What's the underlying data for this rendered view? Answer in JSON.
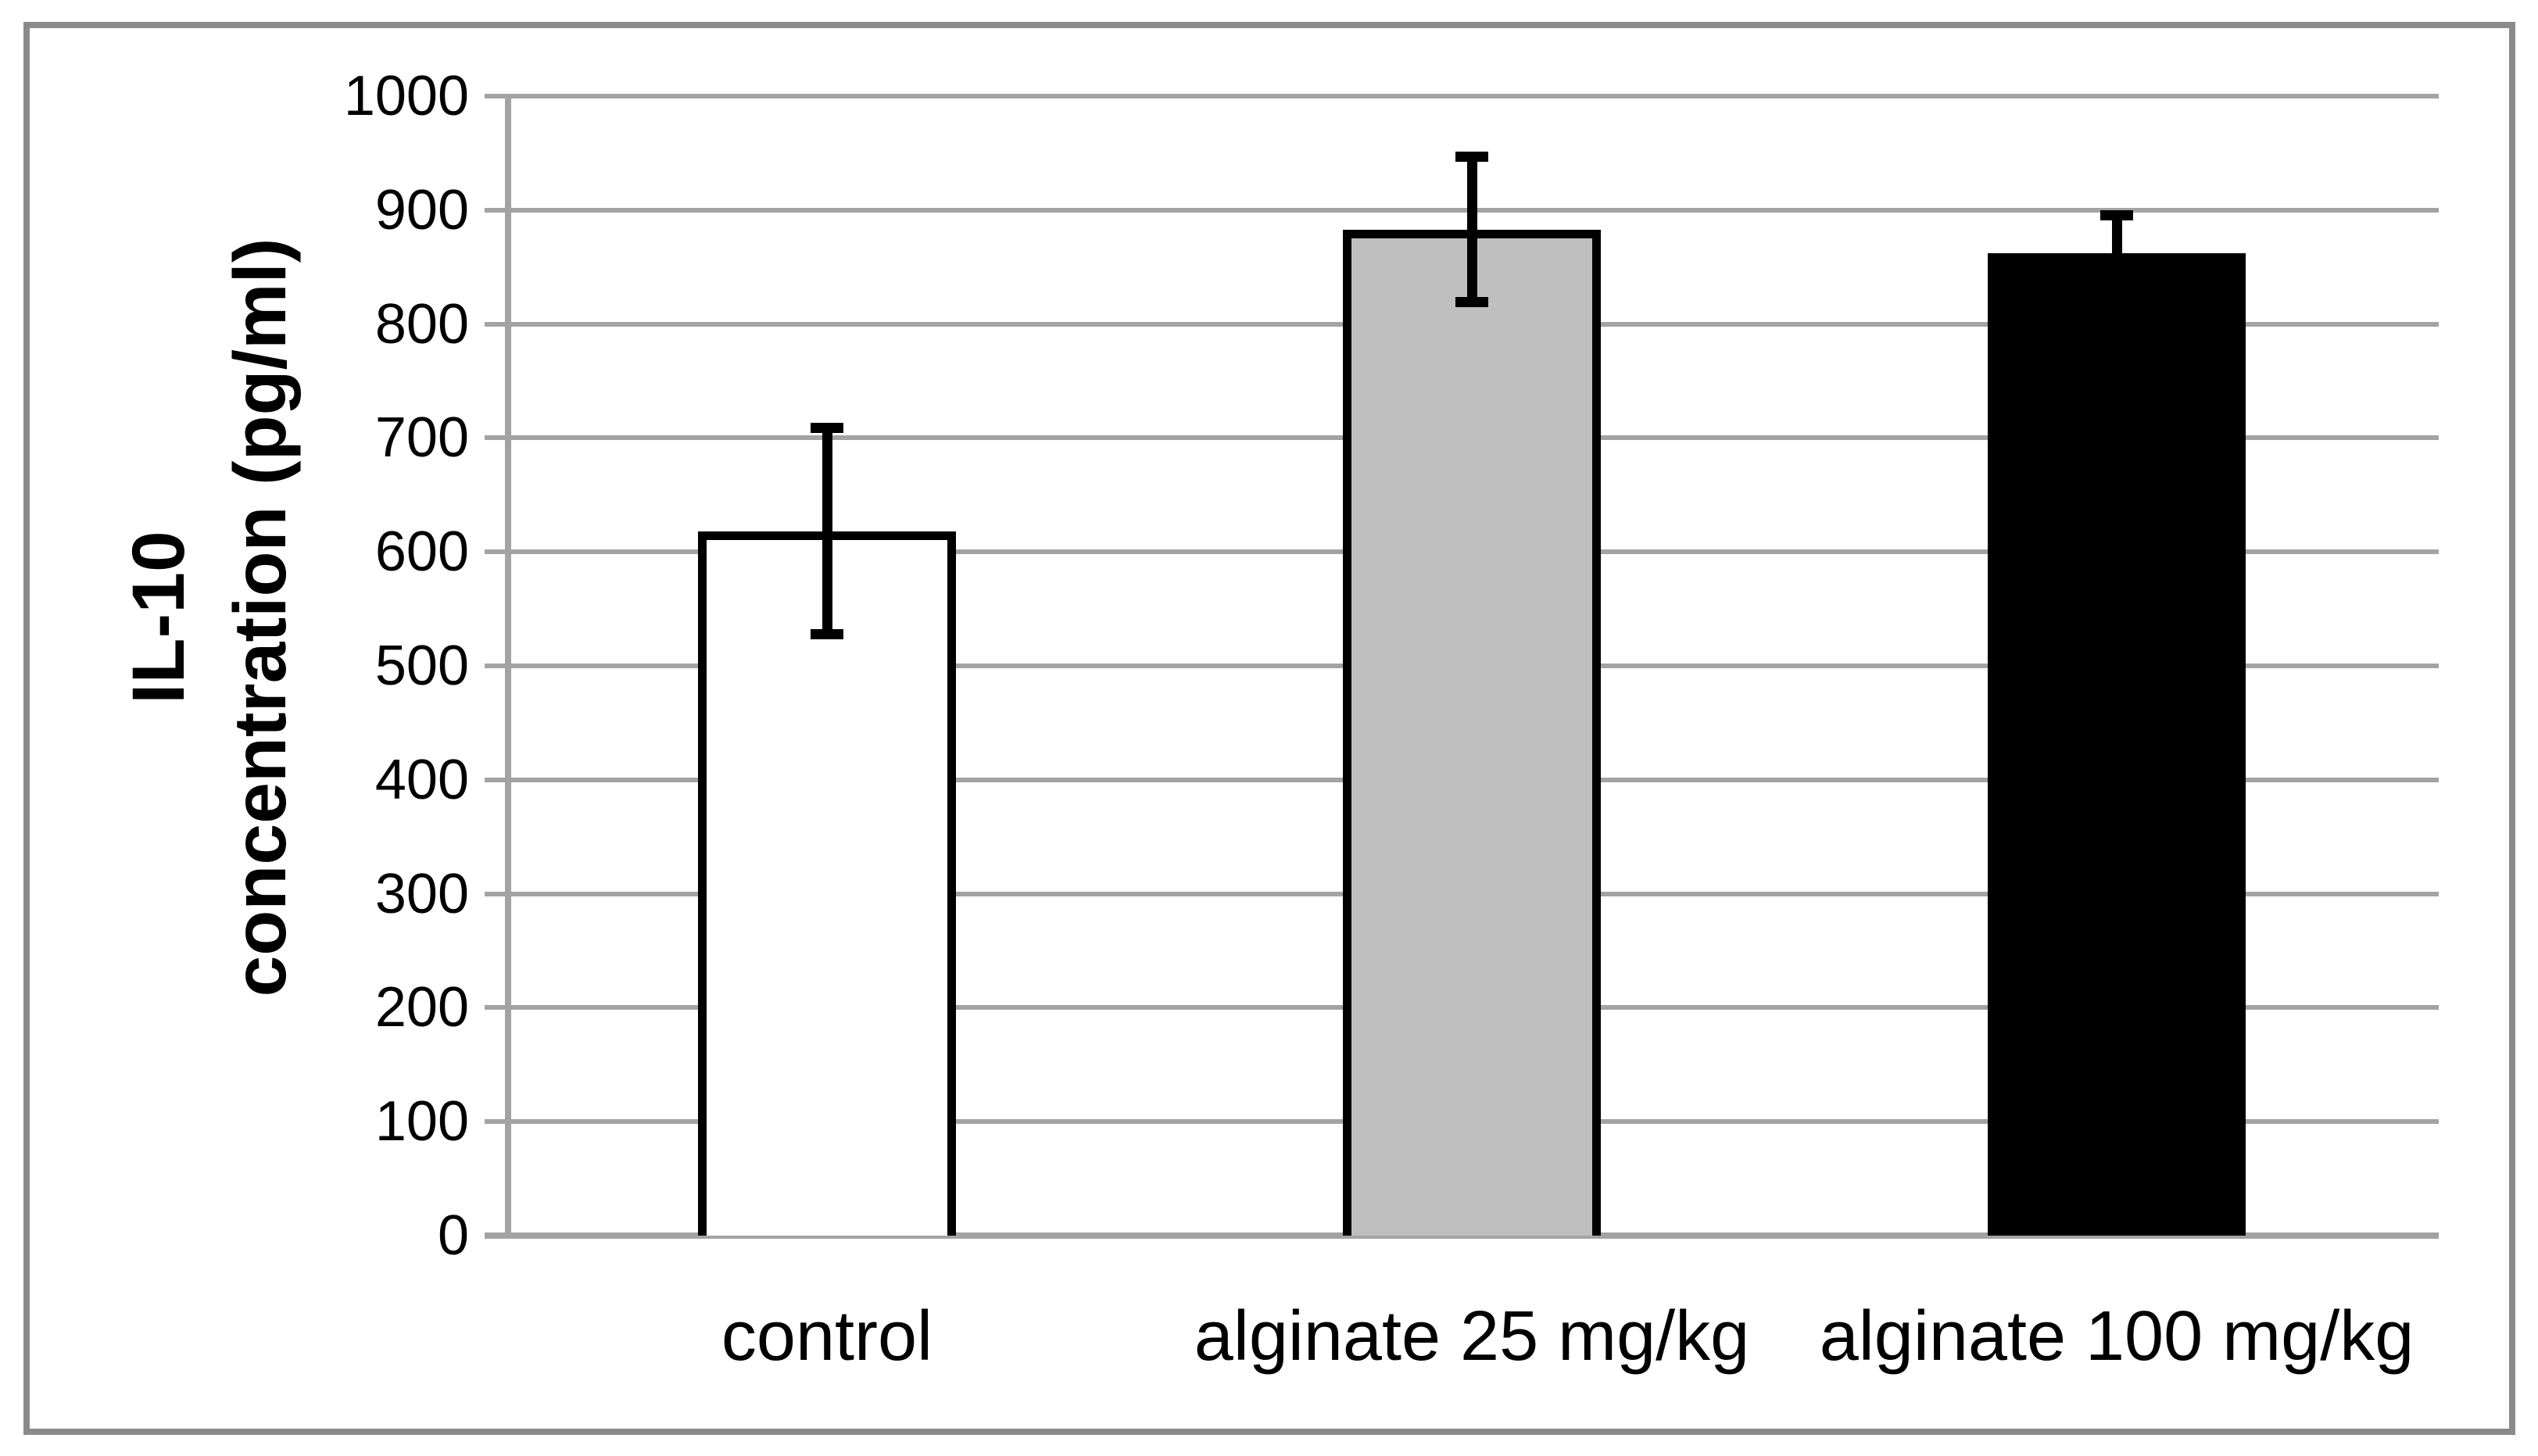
{
  "chart_data": {
    "type": "bar",
    "title": "",
    "xlabel": "",
    "ylabel": "IL-10 concentration (pg/ml)",
    "ylabel_lines": [
      "IL-10",
      "concentration (pg/ml)"
    ],
    "categories": [
      "control",
      "alginate 25 mg/kg",
      "alginate 100 mg/kg"
    ],
    "values": [
      618,
      883,
      862
    ],
    "error_bars": [
      95,
      68,
      38
    ],
    "bar_fill_colors": [
      "#ffffff",
      "#bfbfbf",
      "#000000"
    ],
    "bar_border_color": "#000000",
    "ylim": [
      0,
      1000
    ],
    "ytick_step": 100,
    "yticks": [
      0,
      100,
      200,
      300,
      400,
      500,
      600,
      700,
      800,
      900,
      1000
    ],
    "grid": true,
    "gridlines": "horizontal",
    "legend_position": "none"
  },
  "colors": {
    "grid": "#a3a3a3",
    "axis": "#a3a3a3",
    "frame": "#8a8a8a",
    "error_bar": "#000000",
    "text": "#000000",
    "background": "#ffffff"
  }
}
